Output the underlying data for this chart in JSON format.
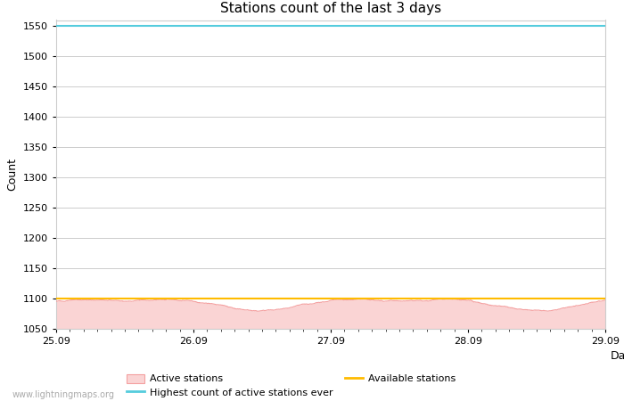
{
  "title": "Stations count of the last 3 days",
  "xlabel": "Day",
  "ylabel": "Count",
  "ylim": [
    1050,
    1560
  ],
  "yticks": [
    1050,
    1100,
    1150,
    1200,
    1250,
    1300,
    1350,
    1400,
    1450,
    1500,
    1550
  ],
  "x_start": 0.0,
  "x_end": 4.0,
  "xtick_positions": [
    0.0,
    1.0,
    2.0,
    3.0,
    4.0
  ],
  "xtick_labels": [
    "25.09",
    "26.09",
    "27.09",
    "28.09",
    "29.09"
  ],
  "highest_ever": 1550,
  "available_stations": 1100,
  "active_mean": 1092,
  "active_min": 1050,
  "active_noise_std": 5,
  "active_line_color": "#f4a0a0",
  "active_fill_color": "#fad4d4",
  "highest_line_color": "#55ccdd",
  "available_line_color": "#ffbb00",
  "background_color": "#ffffff",
  "grid_color": "#cccccc",
  "title_fontsize": 11,
  "label_fontsize": 9,
  "tick_fontsize": 8,
  "watermark": "www.lightningmaps.org",
  "num_points": 2000,
  "legend_row1": [
    "Active stations",
    "Highest count of active stations ever"
  ],
  "legend_row2": [
    "Available stations"
  ]
}
